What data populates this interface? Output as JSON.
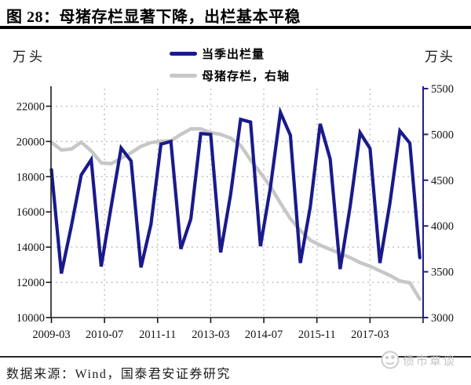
{
  "header": {
    "title": "图 28：母猪存栏显著下降，出栏基本平稳"
  },
  "legend": [
    {
      "label": "当季出栏量",
      "color": "#1a1a8c"
    },
    {
      "label": "母猪存栏，右轴",
      "color": "#c7c7c7"
    }
  ],
  "axes": {
    "left_unit": "万头",
    "right_unit": "万头",
    "left_ticks": [
      10000,
      12000,
      14000,
      16000,
      18000,
      20000,
      22000
    ],
    "right_ticks": [
      3000,
      3500,
      4000,
      4500,
      5000,
      5500
    ],
    "x_tick_labels": [
      "2009-03",
      "2010-07",
      "2011-11",
      "2013-03",
      "2014-07",
      "2015-11",
      "2017-03"
    ]
  },
  "chart_data": {
    "type": "line",
    "title": "图 28：母猪存栏显著下降，出栏基本平稳",
    "x": [
      "2009-03",
      "2009-06",
      "2009-09",
      "2009-12",
      "2010-03",
      "2010-06",
      "2010-09",
      "2010-12",
      "2011-03",
      "2011-06",
      "2011-09",
      "2011-12",
      "2012-03",
      "2012-06",
      "2012-09",
      "2012-12",
      "2013-03",
      "2013-06",
      "2013-09",
      "2013-12",
      "2014-03",
      "2014-06",
      "2014-09",
      "2014-12",
      "2015-03",
      "2015-06",
      "2015-09",
      "2015-12",
      "2016-03",
      "2016-06",
      "2016-09",
      "2016-12",
      "2017-03",
      "2017-06",
      "2017-09",
      "2017-12",
      "2018-03",
      "2018-06"
    ],
    "series": [
      {
        "id": "slaughter",
        "name": "当季出栏量",
        "axis": "left",
        "color": "#1a1a8c",
        "values": [
          18400,
          12500,
          15200,
          18100,
          18960,
          12900,
          16300,
          19630,
          18890,
          12850,
          15300,
          19850,
          20000,
          13900,
          15600,
          20450,
          20400,
          13700,
          17000,
          21250,
          21100,
          14050,
          17400,
          21650,
          20350,
          13100,
          16300,
          21000,
          19000,
          12750,
          16300,
          20500,
          19600,
          13100,
          16500,
          20600,
          19900,
          13400
        ]
      },
      {
        "id": "sow-inventory",
        "name": "母猪存栏，右轴",
        "axis": "right",
        "color": "#c7c7c7",
        "values": [
          4915,
          4830,
          4840,
          4915,
          4820,
          4690,
          4680,
          4740,
          4800,
          4870,
          4910,
          4925,
          4930,
          5000,
          5060,
          5060,
          5020,
          5000,
          4960,
          4880,
          4720,
          4580,
          4430,
          4250,
          4080,
          3950,
          3845,
          3790,
          3745,
          3700,
          3655,
          3600,
          3560,
          3510,
          3460,
          3400,
          3380,
          3200
        ]
      }
    ],
    "left_ylim": [
      10000,
      23000
    ],
    "right_ylim": [
      3000,
      5500
    ],
    "left_unit": "万头",
    "right_unit": "万头",
    "grid": "dotted",
    "legend_position": "top-center",
    "x_ticks_every_months": 16
  },
  "footer": {
    "source": "数据来源：Wind，国泰君安证券研究",
    "watermark_text": "债市覃谈"
  }
}
